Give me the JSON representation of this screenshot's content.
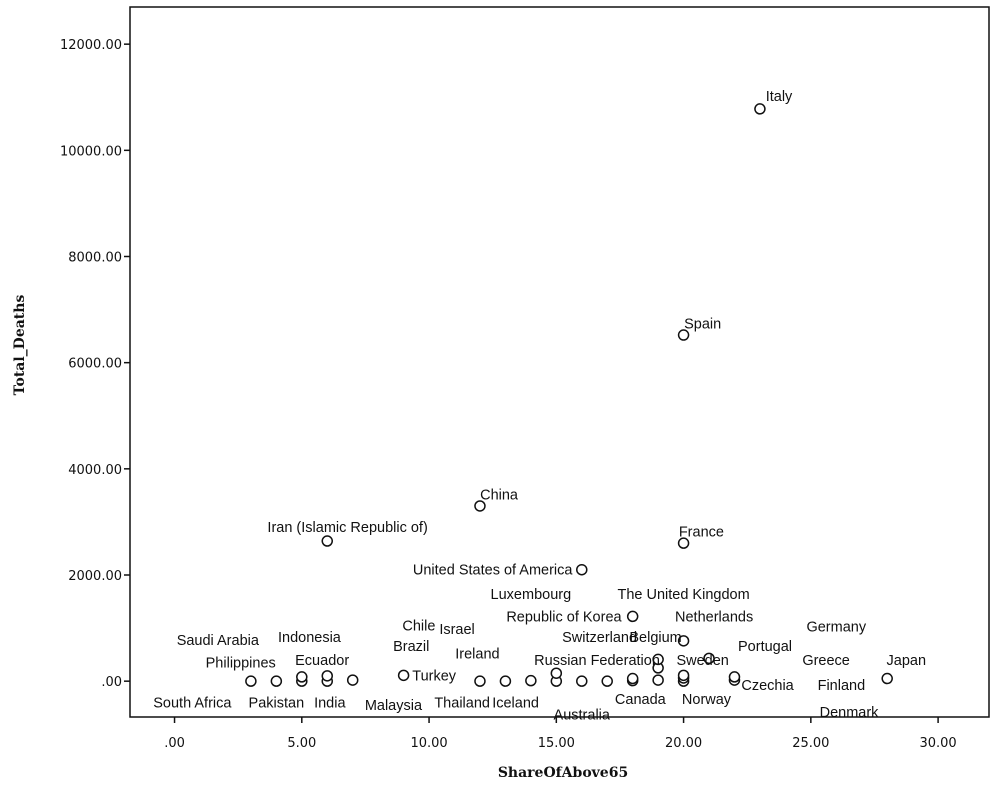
{
  "chart_data": {
    "type": "scatter",
    "title": "",
    "xlabel": "ShareOfAbove65",
    "ylabel": "Total_Deaths",
    "xlim": [
      -1.75,
      32
    ],
    "ylim": [
      -675,
      12700
    ],
    "x_ticks": [
      0,
      5,
      10,
      15,
      20,
      25,
      30
    ],
    "x_tick_labels": [
      ".00",
      "5.00",
      "10.00",
      "15.00",
      "20.00",
      "25.00",
      "30.00"
    ],
    "y_ticks": [
      0,
      2000,
      4000,
      6000,
      8000,
      10000,
      12000
    ],
    "y_tick_labels": [
      ".00",
      "2000.00",
      "4000.00",
      "6000.00",
      "8000.00",
      "10000.00",
      "12000.00"
    ],
    "grid": false,
    "legend": "none",
    "marker": "open-circle",
    "points": [
      {
        "x": 3,
        "y": 0
      },
      {
        "x": 4,
        "y": 0
      },
      {
        "x": 5,
        "y": 0
      },
      {
        "x": 5,
        "y": 80
      },
      {
        "x": 6,
        "y": 0
      },
      {
        "x": 6,
        "y": 100
      },
      {
        "x": 6,
        "y": 2640
      },
      {
        "x": 7,
        "y": 20
      },
      {
        "x": 9,
        "y": 110
      },
      {
        "x": 12,
        "y": 0
      },
      {
        "x": 12,
        "y": 3300
      },
      {
        "x": 13,
        "y": 0
      },
      {
        "x": 14,
        "y": 10
      },
      {
        "x": 15,
        "y": 0
      },
      {
        "x": 15,
        "y": 150
      },
      {
        "x": 16,
        "y": 0
      },
      {
        "x": 16,
        "y": 2100
      },
      {
        "x": 17,
        "y": 0
      },
      {
        "x": 18,
        "y": 10
      },
      {
        "x": 18,
        "y": 50
      },
      {
        "x": 18,
        "y": 1220
      },
      {
        "x": 19,
        "y": 20
      },
      {
        "x": 19,
        "y": 250
      },
      {
        "x": 19,
        "y": 410
      },
      {
        "x": 20,
        "y": 0
      },
      {
        "x": 20,
        "y": 60
      },
      {
        "x": 20,
        "y": 110
      },
      {
        "x": 20,
        "y": 760
      },
      {
        "x": 20,
        "y": 2600
      },
      {
        "x": 20,
        "y": 6520
      },
      {
        "x": 21,
        "y": 430
      },
      {
        "x": 22,
        "y": 20
      },
      {
        "x": 22,
        "y": 80
      },
      {
        "x": 23,
        "y": 10780
      },
      {
        "x": 28,
        "y": 50
      }
    ],
    "annotations": [
      {
        "text": "Italy",
        "x": 23.75,
        "y": 11020
      },
      {
        "text": "Spain",
        "x": 20.75,
        "y": 6740
      },
      {
        "text": "China",
        "x": 12.75,
        "y": 3520
      },
      {
        "text": "France",
        "x": 20.7,
        "y": 2820
      },
      {
        "text": "Iran (Islamic Republic of)",
        "x": 6.8,
        "y": 2900
      },
      {
        "text": "United States of America",
        "x": 12.5,
        "y": 2100
      },
      {
        "text": "Luxembourg",
        "x": 14,
        "y": 1640
      },
      {
        "text": "The United Kingdom",
        "x": 20,
        "y": 1640
      },
      {
        "text": "Republic of Korea",
        "x": 15.3,
        "y": 1220
      },
      {
        "text": "Netherlands",
        "x": 21.2,
        "y": 1220
      },
      {
        "text": "Germany",
        "x": 26,
        "y": 1030
      },
      {
        "text": "Chile",
        "x": 9.6,
        "y": 1050
      },
      {
        "text": "Israel",
        "x": 11.1,
        "y": 980
      },
      {
        "text": "Saudi Arabia",
        "x": 1.7,
        "y": 780
      },
      {
        "text": "Indonesia",
        "x": 5.3,
        "y": 830
      },
      {
        "text": "Switzerland",
        "x": 16.7,
        "y": 830
      },
      {
        "text": "Belgium",
        "x": 18.9,
        "y": 830
      },
      {
        "text": "Brazil",
        "x": 9.3,
        "y": 660
      },
      {
        "text": "Portugal",
        "x": 23.2,
        "y": 660
      },
      {
        "text": "Ireland",
        "x": 11.9,
        "y": 520
      },
      {
        "text": "Ecuador",
        "x": 5.8,
        "y": 400
      },
      {
        "text": "Russian Federation",
        "x": 16.6,
        "y": 400
      },
      {
        "text": "Sweden",
        "x": 20.75,
        "y": 400
      },
      {
        "text": "Greece",
        "x": 25.6,
        "y": 400
      },
      {
        "text": "Japan",
        "x": 28.75,
        "y": 400
      },
      {
        "text": "Philippines",
        "x": 2.6,
        "y": 350
      },
      {
        "text": "Turkey",
        "x": 10.2,
        "y": 110
      },
      {
        "text": "Czechia",
        "x": 23.3,
        "y": -70
      },
      {
        "text": "Finland",
        "x": 26.2,
        "y": -70
      },
      {
        "text": "Canada",
        "x": 18.3,
        "y": -340
      },
      {
        "text": "Norway",
        "x": 20.9,
        "y": -340
      },
      {
        "text": "South Africa",
        "x": 0.7,
        "y": -400
      },
      {
        "text": "Pakistan",
        "x": 4,
        "y": -400
      },
      {
        "text": "India",
        "x": 6.1,
        "y": -400
      },
      {
        "text": "Malaysia",
        "x": 8.6,
        "y": -450
      },
      {
        "text": "Thailand",
        "x": 11.3,
        "y": -400
      },
      {
        "text": "Iceland",
        "x": 13.4,
        "y": -400
      },
      {
        "text": "Australia",
        "x": 16,
        "y": -630
      },
      {
        "text": "Denmark",
        "x": 26.5,
        "y": -580
      }
    ]
  }
}
